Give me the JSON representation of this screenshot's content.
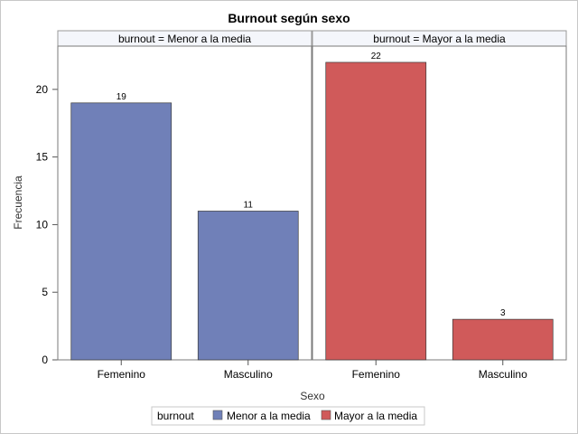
{
  "chart_data": {
    "type": "bar",
    "title": "Burnout según sexo",
    "xlabel": "Sexo",
    "ylabel": "Frecuencia",
    "categories": [
      "Femenino",
      "Masculino"
    ],
    "yticks": [
      0,
      5,
      10,
      15,
      20
    ],
    "ylim": [
      0,
      23.2
    ],
    "group_variable": "burnout",
    "panels": [
      {
        "header": "burnout = Menor a la media",
        "group": "Menor a la media",
        "color": "#7080b8",
        "values": [
          19,
          11
        ]
      },
      {
        "header": "burnout = Mayor a la media",
        "group": "Mayor a la media",
        "color": "#d05a5a",
        "values": [
          22,
          3
        ]
      }
    ],
    "legend": {
      "title": "burnout",
      "position": "bottom",
      "items": [
        {
          "label": "Menor a la media",
          "color": "#7080b8"
        },
        {
          "label": "Mayor a la media",
          "color": "#d05a5a"
        }
      ]
    }
  }
}
